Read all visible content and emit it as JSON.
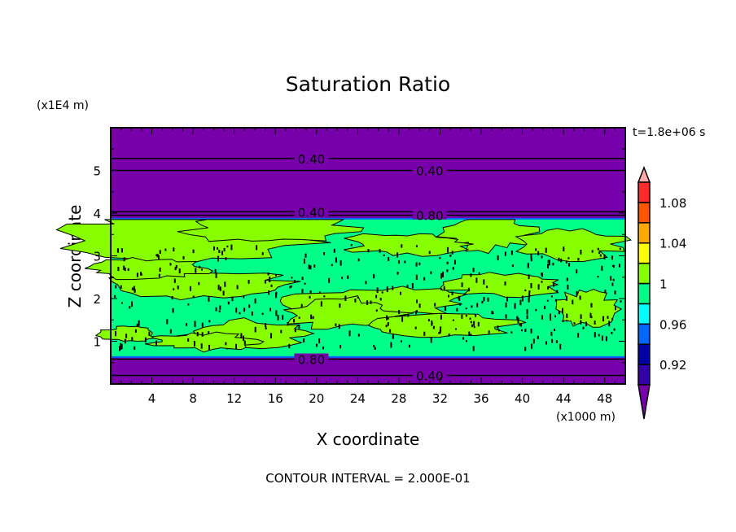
{
  "chart_data": {
    "type": "heatmap",
    "subtype": "filled-contour",
    "title": "Saturation Ratio",
    "xlabel": "X coordinate",
    "ylabel": "Z coordinate",
    "x_unit_label": "(x1000 m)",
    "y_unit_label": "(x1E4 m)",
    "time_label": "t=1.8e+06 s",
    "footer": "CONTOUR INTERVAL = 2.000E-01",
    "xlim": [
      0,
      50
    ],
    "ylim": [
      0,
      6
    ],
    "x_ticks": [
      4,
      8,
      12,
      16,
      20,
      24,
      28,
      32,
      36,
      40,
      44,
      48
    ],
    "x_tick_labels": [
      "4",
      "8",
      "12",
      "16",
      "20",
      "24",
      "28",
      "32",
      "36",
      "40",
      "44",
      "48"
    ],
    "y_ticks": [
      1,
      2,
      3,
      4,
      5
    ],
    "y_tick_labels": [
      "1",
      "2",
      "3",
      "4",
      "5"
    ],
    "contour_lines": [
      {
        "z": 5.28,
        "label": "0.40"
      },
      {
        "z": 5.0,
        "label": "0.40"
      },
      {
        "z": 4.03,
        "label": "0.40"
      },
      {
        "z": 3.95,
        "label": "0.80"
      },
      {
        "z": 0.58,
        "label": "0.80"
      },
      {
        "z": 0.2,
        "label": "0.40"
      }
    ],
    "regions": {
      "dry_top": {
        "z": [
          3.85,
          6.0
        ],
        "value_below": 0.9
      },
      "moist_band": {
        "z": [
          0.65,
          3.85
        ],
        "values": [
          0.98,
          1.02
        ]
      },
      "dry_bottom": {
        "z": [
          0.0,
          0.65
        ],
        "value_below": 0.9
      }
    },
    "colorbar": {
      "levels": [
        0.9,
        0.92,
        0.94,
        0.96,
        0.98,
        1.0,
        1.02,
        1.04,
        1.06,
        1.08,
        1.1
      ],
      "colors": [
        "#3300aa",
        "#0000aa",
        "#0066ff",
        "#00ffff",
        "#00ff88",
        "#88ff00",
        "#ffff00",
        "#ffaa00",
        "#ff5500",
        "#ff2a2a"
      ],
      "under_color": "#7700aa",
      "over_color": "#ffaaaa",
      "labels": [
        {
          "value": 0.92,
          "text": "0.92"
        },
        {
          "value": 0.96,
          "text": "0.96"
        },
        {
          "value": 1.0,
          "text": "1"
        },
        {
          "value": 1.04,
          "text": "1.04"
        },
        {
          "value": 1.08,
          "text": "1.08"
        }
      ]
    }
  }
}
